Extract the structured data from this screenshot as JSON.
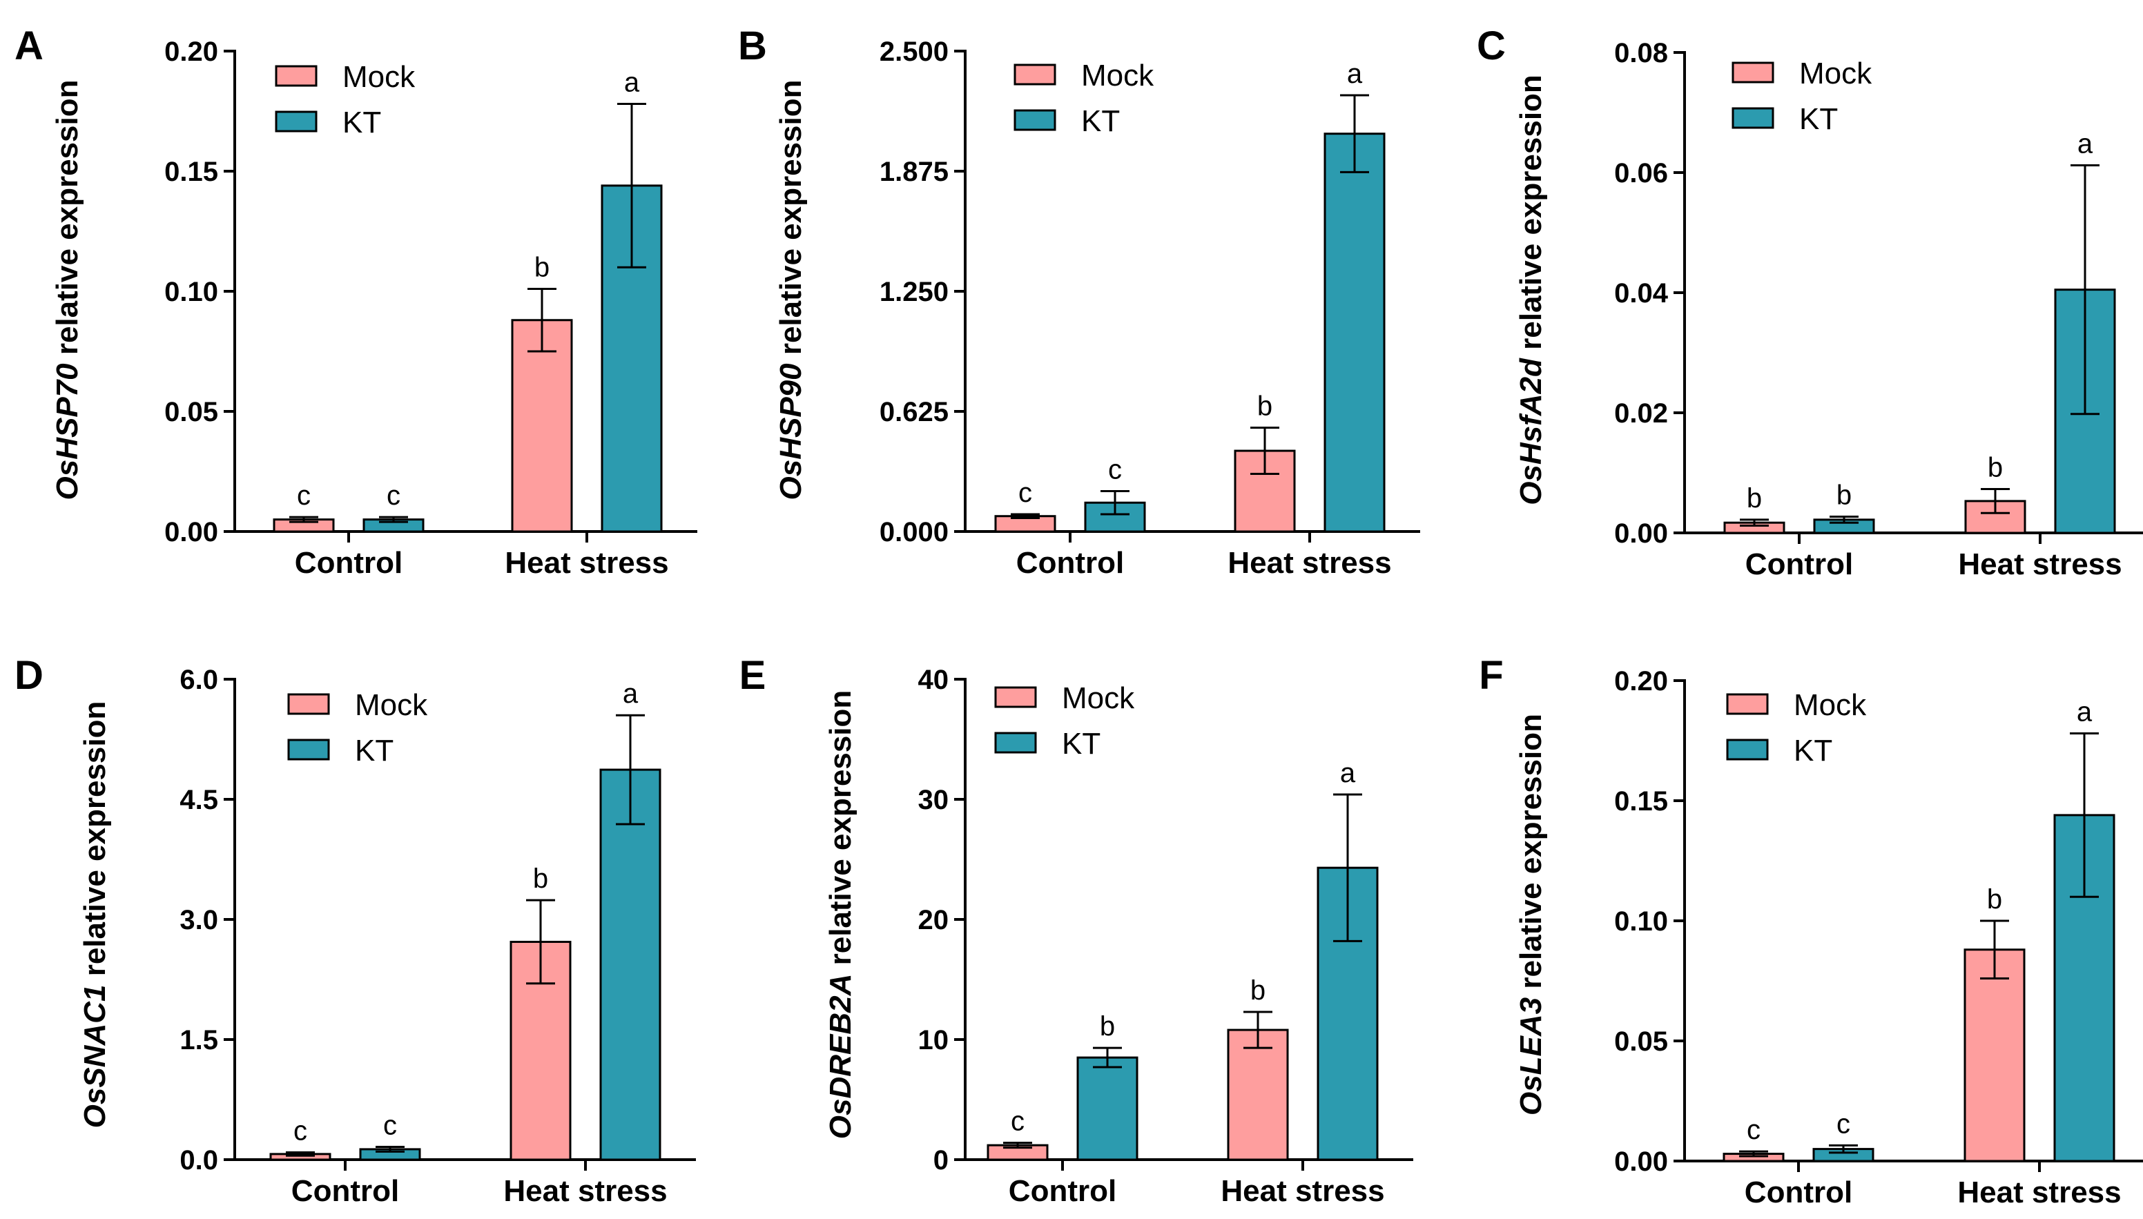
{
  "colors": {
    "mock": "#FE9E9E",
    "kt": "#2C9BAF",
    "axis": "#000000"
  },
  "legend": {
    "mock": "Mock",
    "kt": "KT"
  },
  "ylabel_suffix": " relative expression",
  "chart_data": [
    {
      "panel": "A",
      "type": "bar",
      "gene": "OsHSP70",
      "categories": [
        "Control",
        "Heat stress"
      ],
      "series": [
        {
          "name": "Mock",
          "values": [
            0.005,
            0.088
          ],
          "errors": [
            0.001,
            0.013
          ],
          "letters": [
            "c",
            "b"
          ]
        },
        {
          "name": "KT",
          "values": [
            0.005,
            0.144
          ],
          "errors": [
            0.001,
            0.034
          ],
          "letters": [
            "c",
            "a"
          ]
        }
      ],
      "ylim": [
        0,
        0.2
      ],
      "yticks": [
        "0.00",
        "0.05",
        "0.10",
        "0.15",
        "0.20"
      ]
    },
    {
      "panel": "B",
      "type": "bar",
      "gene": "OsHSP90",
      "categories": [
        "Control",
        "Heat stress"
      ],
      "series": [
        {
          "name": "Mock",
          "values": [
            0.08,
            0.42
          ],
          "errors": [
            0.01,
            0.12
          ],
          "letters": [
            "c",
            "b"
          ]
        },
        {
          "name": "KT",
          "values": [
            0.15,
            2.07
          ],
          "errors": [
            0.06,
            0.2
          ],
          "letters": [
            "c",
            "a"
          ]
        }
      ],
      "ylim": [
        0,
        2.5
      ],
      "yticks": [
        "0.000",
        "0.625",
        "1.250",
        "1.875",
        "2.500"
      ]
    },
    {
      "panel": "C",
      "type": "bar",
      "gene": "OsHsfA2d",
      "categories": [
        "Control",
        "Heat stress"
      ],
      "series": [
        {
          "name": "Mock",
          "values": [
            0.0017,
            0.0053
          ],
          "errors": [
            0.0005,
            0.002
          ],
          "letters": [
            "b",
            "b"
          ]
        },
        {
          "name": "KT",
          "values": [
            0.0022,
            0.0405
          ],
          "errors": [
            0.0005,
            0.0207
          ],
          "letters": [
            "b",
            "a"
          ]
        }
      ],
      "ylim": [
        0,
        0.08
      ],
      "yticks": [
        "0.00",
        "0.02",
        "0.04",
        "0.06",
        "0.08"
      ]
    },
    {
      "panel": "D",
      "type": "bar",
      "gene": "OsSNAC1",
      "categories": [
        "Control",
        "Heat stress"
      ],
      "series": [
        {
          "name": "Mock",
          "values": [
            0.07,
            2.72
          ],
          "errors": [
            0.02,
            0.52
          ],
          "letters": [
            "c",
            "b"
          ]
        },
        {
          "name": "KT",
          "values": [
            0.13,
            4.87
          ],
          "errors": [
            0.03,
            0.68
          ],
          "letters": [
            "c",
            "a"
          ]
        }
      ],
      "ylim": [
        0,
        6.0
      ],
      "yticks": [
        "0.0",
        "1.5",
        "3.0",
        "4.5",
        "6.0"
      ]
    },
    {
      "panel": "E",
      "type": "bar",
      "gene": "OsDREB2A",
      "categories": [
        "Control",
        "Heat stress"
      ],
      "series": [
        {
          "name": "Mock",
          "values": [
            1.2,
            10.8
          ],
          "errors": [
            0.2,
            1.5
          ],
          "letters": [
            "c",
            "b"
          ]
        },
        {
          "name": "KT",
          "values": [
            8.5,
            24.3
          ],
          "errors": [
            0.8,
            6.1
          ],
          "letters": [
            "b",
            "a"
          ]
        }
      ],
      "ylim": [
        0,
        40
      ],
      "yticks": [
        "0",
        "10",
        "20",
        "30",
        "40"
      ]
    },
    {
      "panel": "F",
      "type": "bar",
      "gene": "OsLEA3",
      "categories": [
        "Control",
        "Heat stress"
      ],
      "series": [
        {
          "name": "Mock",
          "values": [
            0.003,
            0.088
          ],
          "errors": [
            0.001,
            0.012
          ],
          "letters": [
            "c",
            "b"
          ]
        },
        {
          "name": "KT",
          "values": [
            0.005,
            0.144
          ],
          "errors": [
            0.0015,
            0.034
          ],
          "letters": [
            "c",
            "a"
          ]
        }
      ],
      "ylim": [
        0,
        0.2
      ],
      "yticks": [
        "0.00",
        "0.05",
        "0.10",
        "0.15",
        "0.20"
      ]
    }
  ]
}
